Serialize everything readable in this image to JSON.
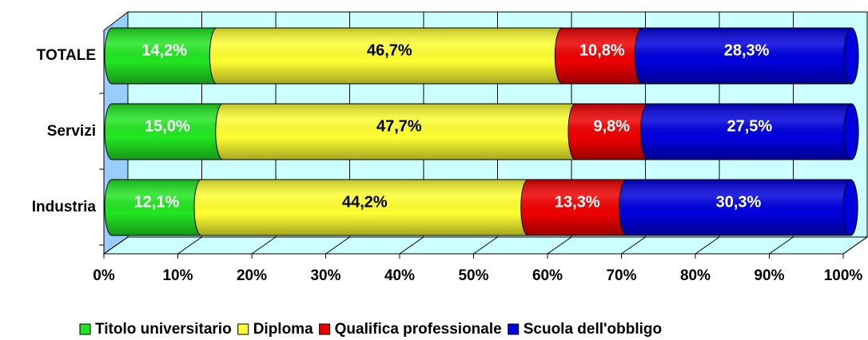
{
  "chart_data": {
    "type": "stacked_barh",
    "categories": [
      "TOTALE",
      "Servizi",
      "Industria"
    ],
    "series": [
      {
        "name": "Titolo universitario",
        "color": "#22e622",
        "label_color": "#ffffff",
        "values": [
          14.2,
          15.0,
          12.1
        ],
        "value_labels": [
          "14,2%",
          "15,0%",
          "12,1%"
        ]
      },
      {
        "name": "Diploma",
        "color": "#ffff33",
        "label_color": "#000000",
        "values": [
          46.7,
          47.7,
          44.2
        ],
        "value_labels": [
          "46,7%",
          "47,7%",
          "44,2%"
        ]
      },
      {
        "name": "Qualifica professionale",
        "color": "#ee0000",
        "label_color": "#ffffff",
        "values": [
          10.8,
          9.8,
          13.3
        ],
        "value_labels": [
          "10,8%",
          "9,8%",
          "13,3%"
        ]
      },
      {
        "name": "Scuola dell'obbligo",
        "color": "#0000dd",
        "label_color": "#ffffff",
        "values": [
          28.3,
          27.5,
          30.3
        ],
        "value_labels": [
          "28,3%",
          "27,5%",
          "30,3%"
        ]
      }
    ],
    "xlim": [
      0,
      100
    ],
    "xticks": [
      {
        "value": 0,
        "label": "0%"
      },
      {
        "value": 10,
        "label": "10%"
      },
      {
        "value": 20,
        "label": "20%"
      },
      {
        "value": 30,
        "label": "30%"
      },
      {
        "value": 40,
        "label": "40%"
      },
      {
        "value": 50,
        "label": "50%"
      },
      {
        "value": 60,
        "label": "60%"
      },
      {
        "value": 70,
        "label": "70%"
      },
      {
        "value": 80,
        "label": "80%"
      },
      {
        "value": 90,
        "label": "90%"
      },
      {
        "value": 100,
        "label": "100%"
      }
    ],
    "grid": true,
    "legend": "bottom"
  }
}
